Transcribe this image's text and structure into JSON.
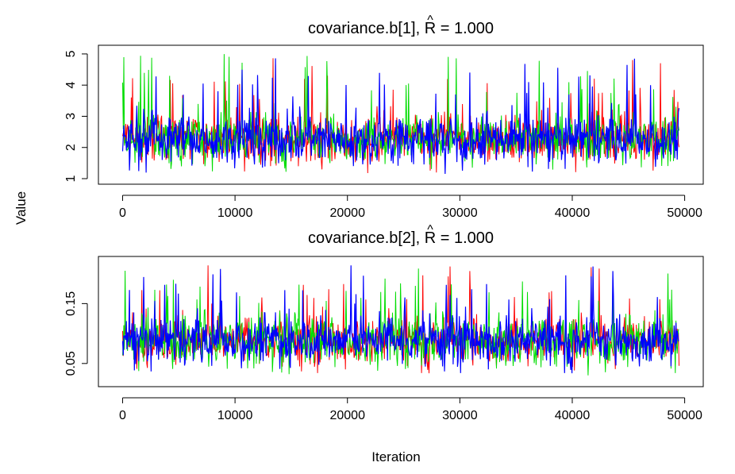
{
  "chart_data": {
    "type": "line",
    "xlabel": "Iteration",
    "ylabel": "Value",
    "series_colors": [
      "#ff0000",
      "#00dd00",
      "#0000ff"
    ],
    "panels": [
      {
        "title_prefix": "covariance.b[1], ",
        "title_symbol": "R",
        "title_hat": "^",
        "title_suffix": " = 1.000",
        "xlim": [
          0,
          49500
        ],
        "xticks": [
          0,
          10000,
          20000,
          30000,
          40000,
          50000
        ],
        "ylim": [
          1.0,
          5.1
        ],
        "yticks": [
          1,
          2,
          3,
          4,
          5
        ],
        "ytick_labels": [
          "1",
          "2",
          "3",
          "4",
          "5"
        ],
        "band_center": 2.3,
        "band_halfwidth": 0.65,
        "spike_max": 5.0,
        "spike_min": 1.15
      },
      {
        "title_prefix": "covariance.b[2], ",
        "title_symbol": "R",
        "title_hat": "^",
        "title_suffix": " = 1.000",
        "xlim": [
          0,
          49500
        ],
        "xticks": [
          0,
          10000,
          20000,
          30000,
          40000,
          50000
        ],
        "ylim": [
          0.02,
          0.22
        ],
        "yticks": [
          0.05,
          0.15
        ],
        "ytick_labels": [
          "0.05",
          "0.15"
        ],
        "band_center": 0.09,
        "band_halfwidth": 0.035,
        "spike_max": 0.215,
        "spike_min": 0.03
      }
    ]
  }
}
